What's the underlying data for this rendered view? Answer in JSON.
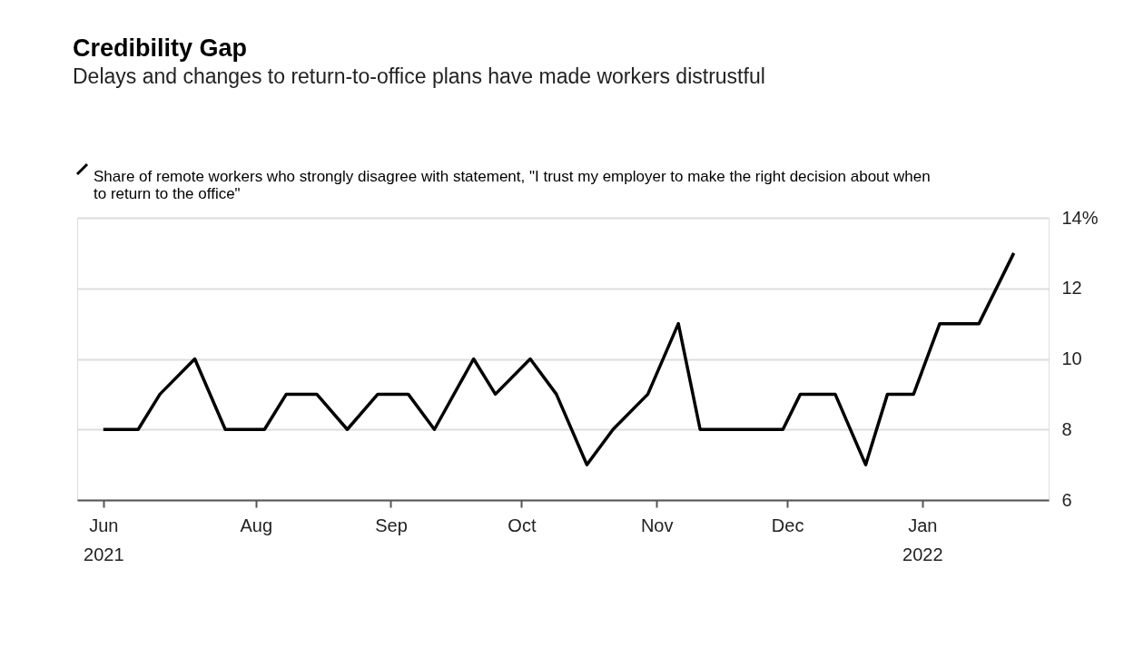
{
  "chart_data": {
    "type": "line",
    "title": "Credibility Gap",
    "subtitle": "Delays and changes to return-to-office plans have made workers distrustful",
    "x": [
      "2021-06-27",
      "2021-07-05",
      "2021-07-10",
      "2021-07-18",
      "2021-07-25",
      "2021-08-03",
      "2021-08-08",
      "2021-08-15",
      "2021-08-22",
      "2021-08-29",
      "2021-09-05",
      "2021-09-11",
      "2021-09-20",
      "2021-09-25",
      "2021-10-03",
      "2021-10-09",
      "2021-10-16",
      "2021-10-22",
      "2021-10-30",
      "2021-11-06",
      "2021-11-11",
      "2021-11-30",
      "2021-12-04",
      "2021-12-12",
      "2021-12-19",
      "2021-12-24",
      "2021-12-30",
      "2022-01-05",
      "2022-01-14",
      "2022-01-22"
    ],
    "series": [
      {
        "name": "Share of remote workers who strongly disagree with statement, \"I trust my employer to make the right decision about when to return to the office\"",
        "color": "#000000",
        "values": [
          8,
          8,
          9,
          10,
          8,
          8,
          9,
          9,
          8,
          9,
          9,
          8,
          10,
          9,
          10,
          9,
          7,
          8,
          9,
          11,
          8,
          8,
          9,
          9,
          7,
          9,
          9,
          11,
          11,
          13
        ]
      }
    ],
    "xlim": [
      "2021-06-21",
      "2022-01-30"
    ],
    "xticks": [
      {
        "value": "2021-06-27",
        "label": "Jun 2021"
      },
      {
        "value": "2021-08-01",
        "label": "Aug"
      },
      {
        "value": "2021-09-01",
        "label": "Sep"
      },
      {
        "value": "2021-10-01",
        "label": "Oct"
      },
      {
        "value": "2021-11-01",
        "label": "Nov"
      },
      {
        "value": "2021-12-01",
        "label": "Dec"
      },
      {
        "value": "2022-01-01",
        "label": "Jan 2022"
      }
    ],
    "ylim": [
      6,
      14
    ],
    "yticks": [
      6,
      8,
      10,
      12,
      {
        "value": 14,
        "label": "14%"
      }
    ],
    "grid": "y",
    "legend": "top left",
    "line_style": "solid",
    "marker": "none"
  }
}
